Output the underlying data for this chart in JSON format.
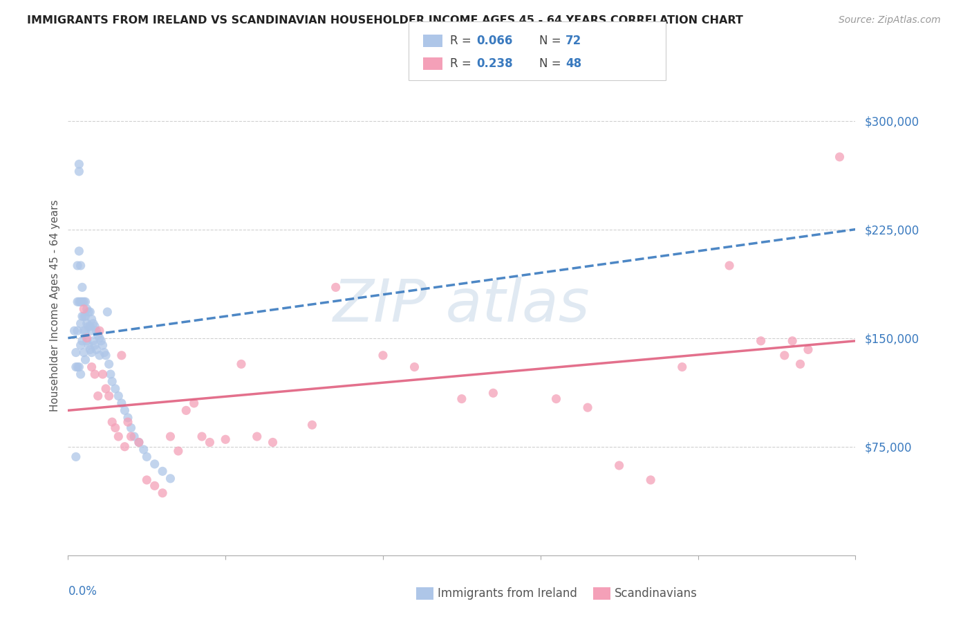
{
  "title": "IMMIGRANTS FROM IRELAND VS SCANDINAVIAN HOUSEHOLDER INCOME AGES 45 - 64 YEARS CORRELATION CHART",
  "source": "Source: ZipAtlas.com",
  "ylabel": "Householder Income Ages 45 - 64 years",
  "blue_color": "#aec6e8",
  "pink_color": "#f4a0b8",
  "blue_line_color": "#3a7abf",
  "pink_line_color": "#e06080",
  "accent_color": "#3a7abf",
  "ytick_labels": [
    "$75,000",
    "$150,000",
    "$225,000",
    "$300,000"
  ],
  "ytick_values": [
    75000,
    150000,
    225000,
    300000
  ],
  "xlim": [
    0.0,
    0.5
  ],
  "ylim": [
    0,
    345000
  ],
  "R_blue": "0.066",
  "N_blue": "72",
  "R_pink": "0.238",
  "N_pink": "48",
  "blue_x": [
    0.004,
    0.005,
    0.005,
    0.005,
    0.006,
    0.006,
    0.006,
    0.006,
    0.007,
    0.007,
    0.007,
    0.007,
    0.007,
    0.008,
    0.008,
    0.008,
    0.008,
    0.008,
    0.009,
    0.009,
    0.009,
    0.009,
    0.01,
    0.01,
    0.01,
    0.01,
    0.011,
    0.011,
    0.011,
    0.011,
    0.012,
    0.012,
    0.012,
    0.013,
    0.013,
    0.013,
    0.014,
    0.014,
    0.014,
    0.015,
    0.015,
    0.015,
    0.016,
    0.016,
    0.017,
    0.017,
    0.018,
    0.018,
    0.019,
    0.02,
    0.02,
    0.021,
    0.022,
    0.023,
    0.024,
    0.025,
    0.026,
    0.027,
    0.028,
    0.03,
    0.032,
    0.034,
    0.036,
    0.038,
    0.04,
    0.042,
    0.045,
    0.048,
    0.05,
    0.055,
    0.06,
    0.065
  ],
  "blue_y": [
    155000,
    140000,
    130000,
    68000,
    200000,
    175000,
    155000,
    130000,
    270000,
    265000,
    210000,
    175000,
    130000,
    200000,
    175000,
    160000,
    145000,
    125000,
    185000,
    175000,
    165000,
    148000,
    175000,
    165000,
    155000,
    140000,
    175000,
    165000,
    155000,
    135000,
    170000,
    160000,
    148000,
    168000,
    158000,
    145000,
    168000,
    158000,
    142000,
    163000,
    155000,
    140000,
    160000,
    148000,
    158000,
    145000,
    155000,
    142000,
    152000,
    150000,
    138000,
    148000,
    145000,
    140000,
    138000,
    168000,
    132000,
    125000,
    120000,
    115000,
    110000,
    105000,
    100000,
    95000,
    88000,
    82000,
    78000,
    73000,
    68000,
    63000,
    58000,
    53000
  ],
  "pink_x": [
    0.01,
    0.012,
    0.015,
    0.017,
    0.019,
    0.02,
    0.022,
    0.024,
    0.026,
    0.028,
    0.03,
    0.032,
    0.034,
    0.036,
    0.038,
    0.04,
    0.045,
    0.05,
    0.055,
    0.06,
    0.065,
    0.07,
    0.075,
    0.08,
    0.085,
    0.09,
    0.1,
    0.11,
    0.12,
    0.13,
    0.155,
    0.17,
    0.2,
    0.22,
    0.25,
    0.27,
    0.31,
    0.33,
    0.35,
    0.37,
    0.39,
    0.42,
    0.44,
    0.455,
    0.46,
    0.465,
    0.47,
    0.49
  ],
  "pink_y": [
    170000,
    150000,
    130000,
    125000,
    110000,
    155000,
    125000,
    115000,
    110000,
    92000,
    88000,
    82000,
    138000,
    75000,
    92000,
    82000,
    78000,
    52000,
    48000,
    43000,
    82000,
    72000,
    100000,
    105000,
    82000,
    78000,
    80000,
    132000,
    82000,
    78000,
    90000,
    185000,
    138000,
    130000,
    108000,
    112000,
    108000,
    102000,
    62000,
    52000,
    130000,
    200000,
    148000,
    138000,
    148000,
    132000,
    142000,
    275000
  ]
}
